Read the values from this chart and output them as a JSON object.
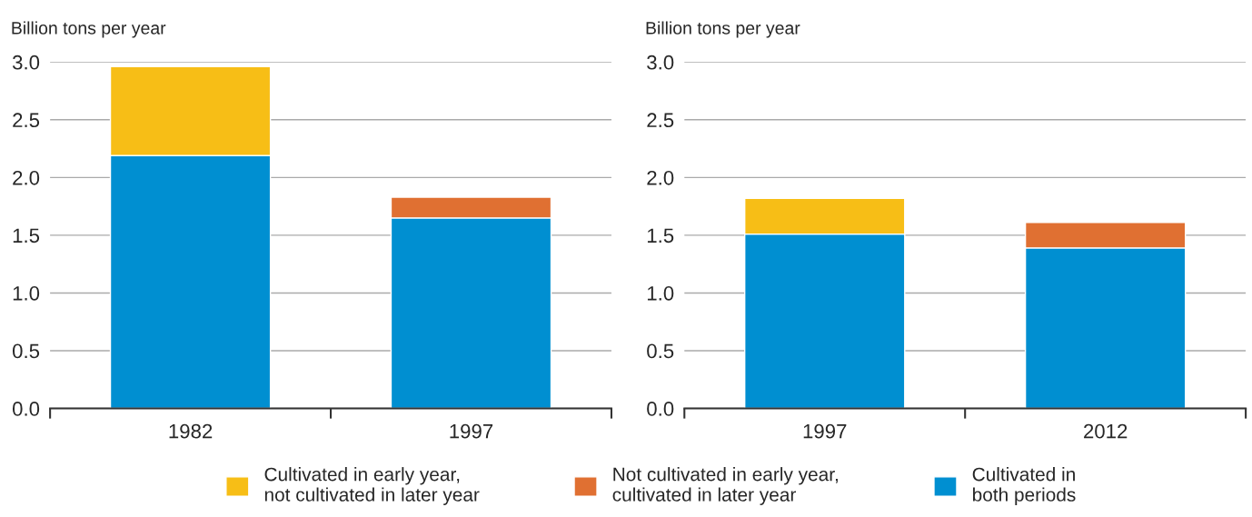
{
  "chart_data": [
    {
      "type": "bar",
      "stacked": true,
      "ylabel": "Billion tons per year",
      "categories": [
        "1982",
        "1997"
      ],
      "ylim": [
        0,
        3.0
      ],
      "yticks": [
        {
          "value": 0,
          "label": "0.0"
        },
        {
          "value": 0.5,
          "label": "0.5"
        },
        {
          "value": 1.0,
          "label": "1.0"
        },
        {
          "value": 1.5,
          "label": "1.5"
        },
        {
          "value": 2.0,
          "label": "2.0"
        },
        {
          "value": 2.5,
          "label": "2.5"
        },
        {
          "value": 3.0,
          "label": "3.0"
        }
      ],
      "grid": "y",
      "legend": "bottom",
      "series": [
        {
          "name": "Cultivated in\nboth periods",
          "color": "#008fd1",
          "values": [
            2.19,
            1.65
          ]
        },
        {
          "name": "Cultivated in early year,\nnot cultivated in later year",
          "color": "#f7be16",
          "values": [
            0.77,
            null
          ]
        },
        {
          "name": "Not cultivated in early year,\ncultivated in later year",
          "color": "#e07032",
          "values": [
            null,
            0.18
          ]
        }
      ]
    },
    {
      "type": "bar",
      "stacked": true,
      "ylabel": "Billion tons per year",
      "categories": [
        "1997",
        "2012"
      ],
      "ylim": [
        0,
        3.0
      ],
      "yticks": [
        {
          "value": 0,
          "label": "0.0"
        },
        {
          "value": 0.5,
          "label": "0.5"
        },
        {
          "value": 1.0,
          "label": "1.0"
        },
        {
          "value": 1.5,
          "label": "1.5"
        },
        {
          "value": 2.0,
          "label": "2.0"
        },
        {
          "value": 2.5,
          "label": "2.5"
        },
        {
          "value": 3.0,
          "label": "3.0"
        }
      ],
      "grid": "y",
      "series": [
        {
          "color": "#008fd1",
          "values": [
            1.51,
            1.39
          ]
        },
        {
          "color": "#f7be16",
          "values": [
            0.31,
            null
          ]
        },
        {
          "color": "#e07032",
          "values": [
            null,
            0.22
          ]
        }
      ]
    }
  ]
}
